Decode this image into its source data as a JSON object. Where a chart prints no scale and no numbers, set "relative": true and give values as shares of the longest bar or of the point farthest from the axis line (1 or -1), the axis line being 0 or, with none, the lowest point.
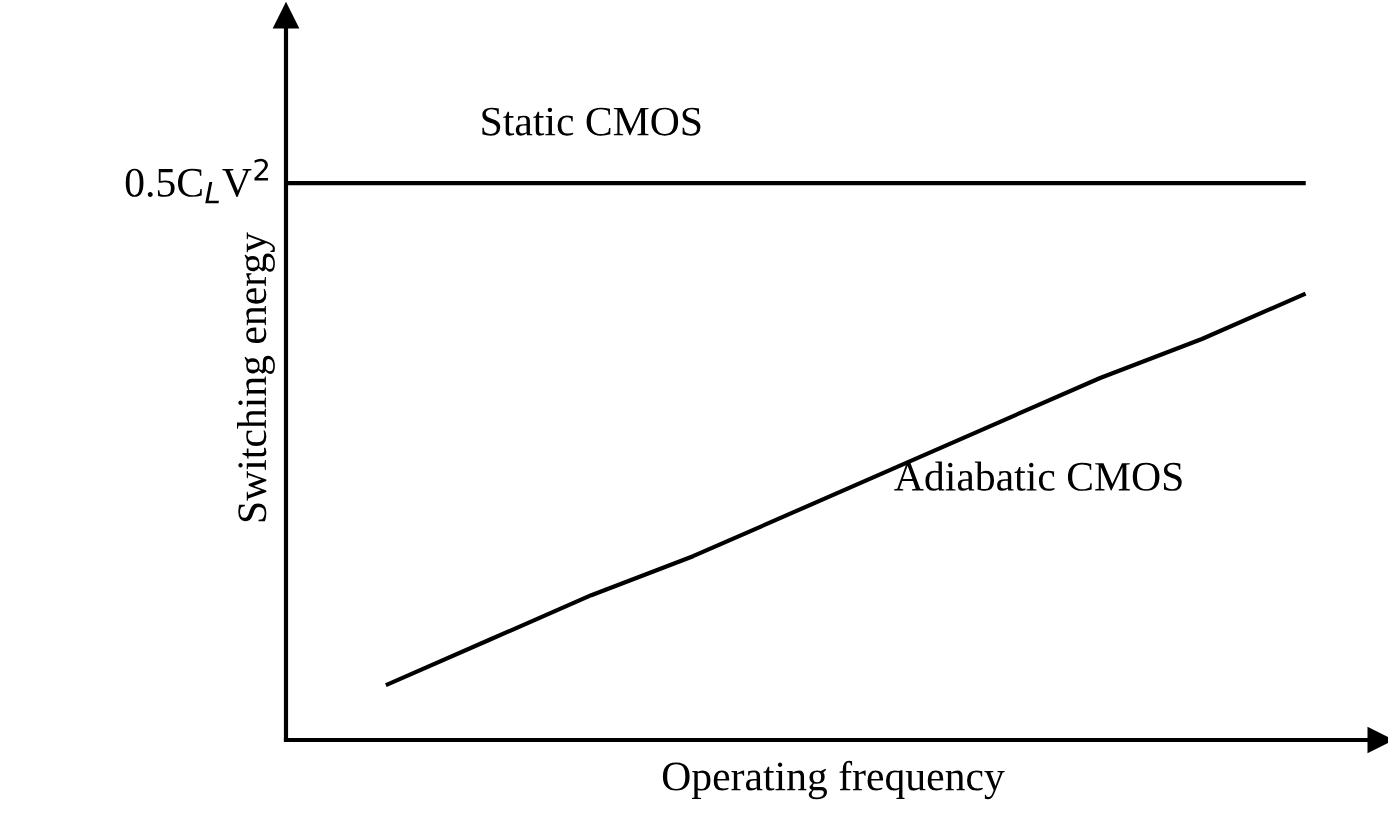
{
  "chart_data": {
    "type": "line",
    "relative": true,
    "xlabel": "Operating frequency",
    "ylabel": "Switching energy",
    "categories": [
      null,
      null,
      null,
      null,
      null,
      null,
      null,
      null,
      null,
      null,
      null
    ],
    "series": [
      {
        "name": "Static CMOS",
        "color": "#000000",
        "values": [
          1,
          1,
          1,
          1,
          1,
          1,
          1,
          1,
          1,
          1,
          1
        ]
      },
      {
        "name": "Adiabatic CMOS",
        "color": "#000000",
        "values": [
          null,
          0.1,
          0.18,
          0.26,
          0.33,
          0.41,
          0.49,
          0.57,
          0.65,
          0.72,
          0.8
        ]
      }
    ],
    "annotations": [
      "0.5C$_{L}$V$^{2}$"
    ],
    "legend": false,
    "grid": false,
    "marker": "none",
    "line_style": "solid"
  }
}
